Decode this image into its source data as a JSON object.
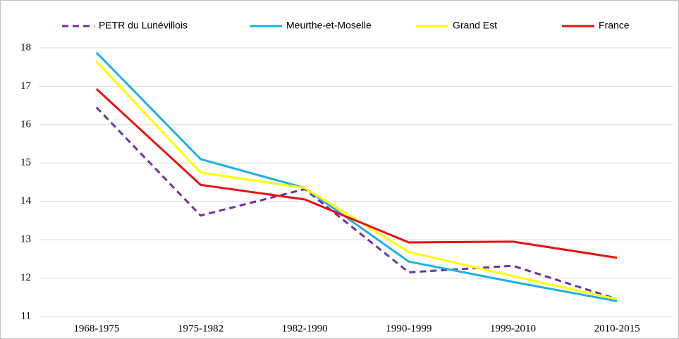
{
  "chart_data": {
    "type": "line",
    "categories": [
      "1968-1975",
      "1975-1982",
      "1982-1990",
      "1990-1999",
      "1999-2010",
      "2010-2015"
    ],
    "series": [
      {
        "name": "PETR du Lunévillois",
        "color": "#7030a0",
        "dashed": true,
        "values": [
          16.45,
          13.63,
          14.32,
          12.15,
          12.32,
          11.45
        ]
      },
      {
        "name": "Meurthe-et-Moselle",
        "color": "#1fb0e0",
        "dashed": false,
        "values": [
          17.88,
          15.1,
          14.35,
          12.43,
          11.9,
          11.4
        ]
      },
      {
        "name": "Grand Est",
        "color": "#ffff00",
        "dashed": false,
        "values": [
          17.65,
          14.75,
          14.35,
          12.68,
          12.05,
          11.45
        ]
      },
      {
        "name": "France",
        "color": "#e81010",
        "dashed": false,
        "values": [
          16.93,
          14.43,
          14.05,
          12.93,
          12.95,
          12.53
        ]
      }
    ],
    "ylim": [
      11,
      18
    ],
    "yticks": [
      11,
      12,
      13,
      14,
      15,
      16,
      17,
      18
    ],
    "grid": true,
    "legend": "top"
  }
}
